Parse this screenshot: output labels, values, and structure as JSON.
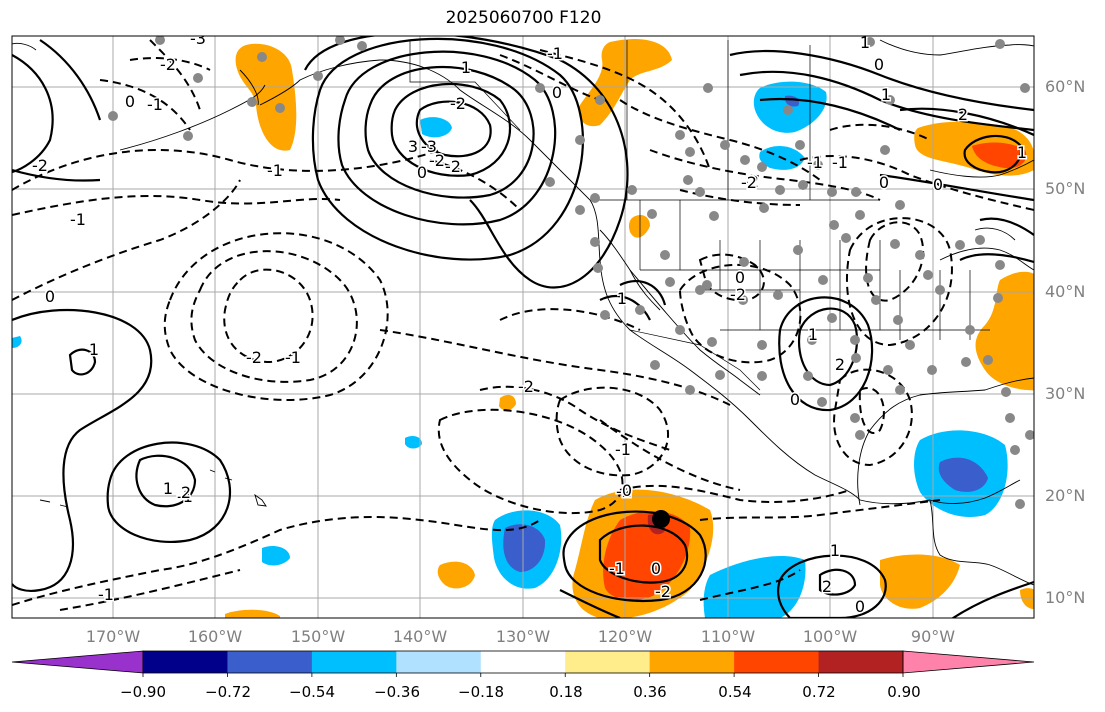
{
  "title": "2025060700 F120",
  "lat_labels": [
    "60°N",
    "50°N",
    "40°N",
    "30°N",
    "20°N",
    "10°N"
  ],
  "lon_labels": [
    "170°W",
    "160°W",
    "150°W",
    "140°W",
    "130°W",
    "120°W",
    "110°W",
    "100°W",
    "90°W"
  ],
  "colorbar": {
    "colors": [
      "#9932cc",
      "#00008b",
      "#3a5fcd",
      "#00bfff",
      "#b0e2ff",
      "#ffffff",
      "#ffec8b",
      "#ffa500",
      "#ff4500",
      "#b22222",
      "#ff82ab"
    ],
    "tick_labels": [
      "−0.90",
      "−0.72",
      "−0.54",
      "−0.36",
      "−0.18",
      "0.18",
      "0.36",
      "0.54",
      "0.72",
      "0.90"
    ]
  },
  "contour_labels": [
    {
      "text": "0"
    },
    {
      "text": "-1"
    },
    {
      "text": "-2"
    },
    {
      "text": "-3"
    },
    {
      "text": "-2"
    },
    {
      "text": "1"
    },
    {
      "text": "-2"
    },
    {
      "text": "-1"
    },
    {
      "text": "-1"
    },
    {
      "text": "0"
    },
    {
      "text": "1"
    },
    {
      "text": "-1"
    },
    {
      "text": "2"
    },
    {
      "text": "-1"
    },
    {
      "text": "-2"
    },
    {
      "text": "-1"
    },
    {
      "text": "-2"
    },
    {
      "text": "-2"
    },
    {
      "text": "0"
    },
    {
      "text": "-1"
    },
    {
      "text": "0"
    },
    {
      "text": "1"
    },
    {
      "text": "0"
    },
    {
      "text": "-1"
    },
    {
      "text": "1"
    },
    {
      "text": "0"
    },
    {
      "text": "-2"
    },
    {
      "text": "0"
    },
    {
      "text": "-1"
    },
    {
      "text": "2"
    },
    {
      "text": "3"
    },
    {
      "text": "0"
    },
    {
      "text": "-1"
    },
    {
      "text": "1"
    },
    {
      "text": "-2"
    },
    {
      "text": "0"
    },
    {
      "text": "-2"
    },
    {
      "text": "-3"
    },
    {
      "text": "-2"
    },
    {
      "text": "0"
    },
    {
      "text": "-2"
    },
    {
      "text": "1"
    },
    {
      "text": "2"
    },
    {
      "text": "-2"
    },
    {
      "text": "0"
    },
    {
      "text": "-1"
    },
    {
      "text": "1"
    },
    {
      "text": "1"
    },
    {
      "text": "1"
    },
    {
      "text": "2"
    },
    {
      "text": "0"
    }
  ]
}
